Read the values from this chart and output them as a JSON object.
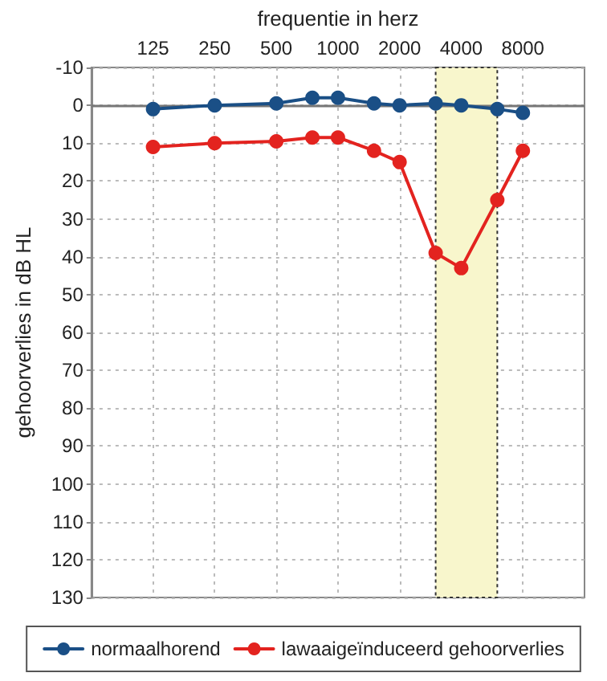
{
  "chart_data": {
    "type": "line",
    "xlabel": "frequentie in herz",
    "ylabel": "gehoorverlies in dB HL",
    "x": [
      125,
      250,
      500,
      750,
      1000,
      1500,
      2000,
      3000,
      4000,
      6000,
      8000
    ],
    "series": [
      {
        "name": "normaalhorend",
        "color": "#1a4f86",
        "values": [
          1,
          0,
          -0.5,
          -2,
          -2,
          -0.5,
          0,
          -0.5,
          0,
          1,
          2
        ]
      },
      {
        "name": "lawaaigeïnduceerd gehoorverlies",
        "color": "#e3231f",
        "values": [
          11,
          10,
          9.5,
          8.5,
          8.5,
          12,
          15,
          39,
          43,
          25,
          12
        ]
      }
    ],
    "log": "x",
    "xlim": [
      62.5,
      16000
    ],
    "xticks": [
      125,
      250,
      500,
      1000,
      2000,
      4000,
      8000
    ],
    "ylim": [
      130,
      -10
    ],
    "yticks": [
      -10,
      0,
      10,
      20,
      30,
      40,
      50,
      60,
      70,
      80,
      90,
      100,
      110,
      120,
      130
    ],
    "bands": [
      {
        "axis": "x",
        "from": 3000,
        "to": 6000,
        "color": "#f8f6cc"
      }
    ],
    "ref_lines": [
      {
        "axis": "y",
        "value": 0,
        "color": "#777777",
        "line_style": "solid"
      }
    ],
    "grid": true,
    "legend": "bottom",
    "marker": "circle",
    "line_style": "solid"
  }
}
